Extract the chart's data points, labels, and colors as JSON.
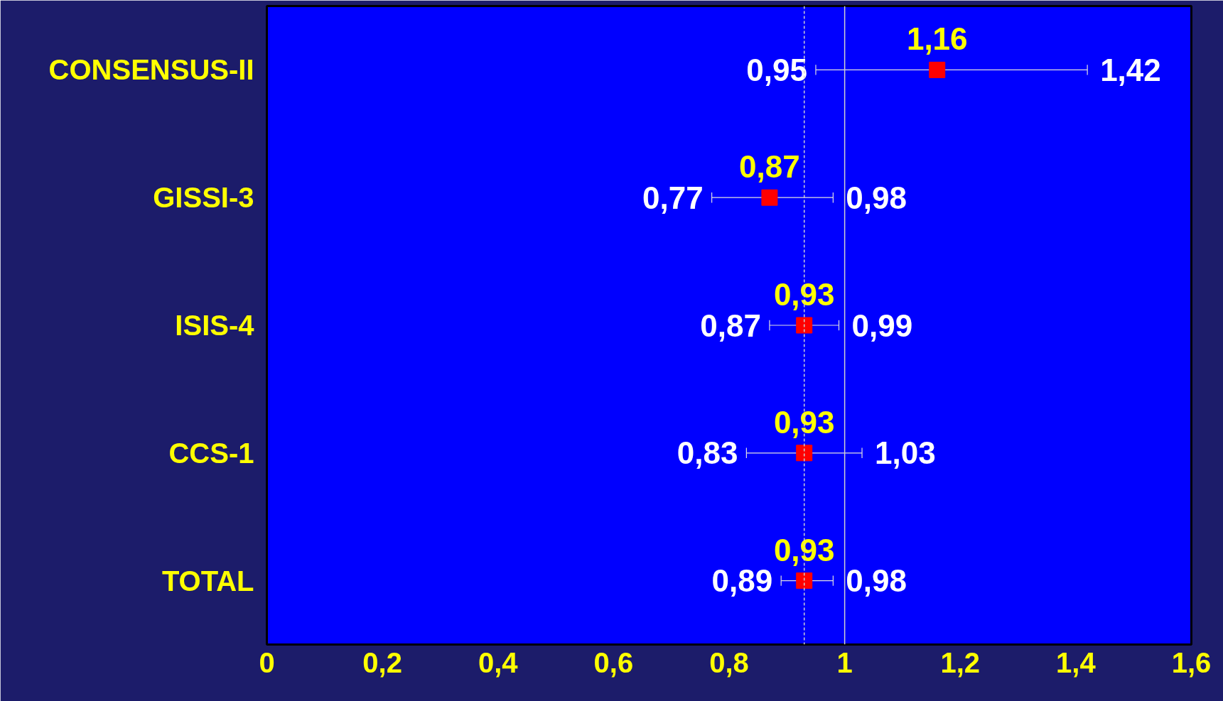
{
  "chart_data": {
    "type": "scatter",
    "orientation": "horizontal",
    "categories": [
      "CONSENSUS-II",
      "GISSI-3",
      "ISIS-4",
      "CCS-1",
      "TOTAL"
    ],
    "values": [
      1.16,
      0.87,
      0.93,
      0.93,
      0.93
    ],
    "value_labels": [
      "1,16",
      "0,87",
      "0,93",
      "0,93",
      "0,93"
    ],
    "errors": [
      [
        0.95,
        1.42
      ],
      [
        0.77,
        0.98
      ],
      [
        0.87,
        0.99
      ],
      [
        0.83,
        1.03
      ],
      [
        0.89,
        0.98
      ]
    ],
    "color": "#ff0000",
    "marker": "square",
    "xlim": [
      0,
      1.6
    ],
    "xticks": [
      0,
      {
        "value": 0.2,
        "label": "0,2"
      },
      {
        "value": 0.4,
        "label": "0,4"
      },
      {
        "value": 0.6,
        "label": "0,6"
      },
      {
        "value": 0.8,
        "label": "0,8"
      },
      1,
      {
        "value": 1.2,
        "label": "1,2"
      },
      {
        "value": 1.4,
        "label": "1,4"
      },
      {
        "value": 1.6,
        "label": "1,6"
      }
    ],
    "ref_lines": [
      {
        "axis": "x",
        "value": 1,
        "color": "#d0d0d0",
        "line_style": "solid"
      },
      {
        "axis": "x",
        "value": 0.93,
        "color": "#d0d0d0",
        "line_style": "dashed"
      }
    ],
    "annotations": [
      "0,95",
      "1,42",
      "0,77",
      "0,98",
      "0,87",
      "0,99",
      "0,83",
      "1,03",
      "0,89",
      "0,98"
    ],
    "grid": false
  }
}
